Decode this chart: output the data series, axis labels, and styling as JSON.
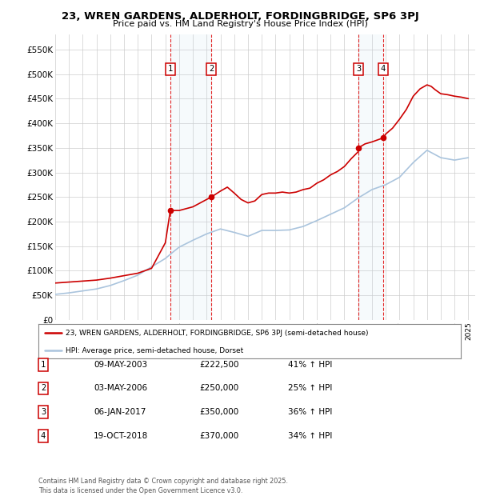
{
  "title": "23, WREN GARDENS, ALDERHOLT, FORDINGBRIDGE, SP6 3PJ",
  "subtitle": "Price paid vs. HM Land Registry's House Price Index (HPI)",
  "background_color": "#ffffff",
  "grid_color": "#cccccc",
  "hpi_line_color": "#aac4dd",
  "price_line_color": "#cc0000",
  "ylim": [
    0,
    580000
  ],
  "yticks": [
    0,
    50000,
    100000,
    150000,
    200000,
    250000,
    300000,
    350000,
    400000,
    450000,
    500000,
    550000
  ],
  "ytick_labels": [
    "£0",
    "£50K",
    "£100K",
    "£150K",
    "£200K",
    "£250K",
    "£300K",
    "£350K",
    "£400K",
    "£450K",
    "£500K",
    "£550K"
  ],
  "sale_year_vals": [
    2003.36,
    2006.34,
    2017.02,
    2018.8
  ],
  "sale_prices": [
    222500,
    250000,
    350000,
    370000
  ],
  "sale_labels": [
    "1",
    "2",
    "3",
    "4"
  ],
  "transaction_table": [
    [
      "1",
      "09-MAY-2003",
      "£222,500",
      "41% ↑ HPI"
    ],
    [
      "2",
      "03-MAY-2006",
      "£250,000",
      "25% ↑ HPI"
    ],
    [
      "3",
      "06-JAN-2017",
      "£350,000",
      "36% ↑ HPI"
    ],
    [
      "4",
      "19-OCT-2018",
      "£370,000",
      "34% ↑ HPI"
    ]
  ],
  "legend_entries": [
    "23, WREN GARDENS, ALDERHOLT, FORDINGBRIDGE, SP6 3PJ (semi-detached house)",
    "HPI: Average price, semi-detached house, Dorset"
  ],
  "footer": "Contains HM Land Registry data © Crown copyright and database right 2025.\nThis data is licensed under the Open Government Licence v3.0.",
  "hpi_data_x": [
    1995.0,
    1995.5,
    1996.0,
    1996.5,
    1997.0,
    1997.5,
    1998.0,
    1998.5,
    1999.0,
    1999.5,
    2000.0,
    2000.5,
    2001.0,
    2001.5,
    2002.0,
    2002.5,
    2003.0,
    2003.5,
    2004.0,
    2004.5,
    2005.0,
    2005.5,
    2006.0,
    2006.5,
    2007.0,
    2007.5,
    2008.0,
    2008.5,
    2009.0,
    2009.5,
    2010.0,
    2010.5,
    2011.0,
    2011.5,
    2012.0,
    2012.5,
    2013.0,
    2013.5,
    2014.0,
    2014.5,
    2015.0,
    2015.5,
    2016.0,
    2016.5,
    2017.0,
    2017.5,
    2018.0,
    2018.5,
    2019.0,
    2019.5,
    2020.0,
    2020.5,
    2021.0,
    2021.5,
    2022.0,
    2022.5,
    2023.0,
    2023.5,
    2024.0,
    2024.5,
    2025.0
  ],
  "hpi_data_y": [
    52000,
    53500,
    55000,
    57000,
    59000,
    61000,
    63000,
    66500,
    70000,
    75000,
    80000,
    85500,
    91000,
    99500,
    108000,
    116500,
    125000,
    136750,
    148000,
    155000,
    162000,
    168500,
    175000,
    180000,
    185000,
    181500,
    178000,
    174000,
    170000,
    176000,
    182000,
    182000,
    182000,
    182500,
    183000,
    186500,
    190000,
    196000,
    202000,
    208500,
    215000,
    221500,
    228000,
    238000,
    248000,
    256500,
    265000,
    270000,
    275000,
    282500,
    290000,
    305000,
    320000,
    332500,
    345000,
    337500,
    330000,
    327500,
    325000,
    327500,
    330000
  ],
  "price_data_x": [
    1995.0,
    1996.0,
    1997.0,
    1998.0,
    1999.0,
    2000.0,
    2001.0,
    2002.0,
    2003.0,
    2003.36,
    2004.0,
    2005.0,
    2006.0,
    2006.34,
    2007.0,
    2007.5,
    2008.0,
    2008.5,
    2009.0,
    2009.5,
    2010.0,
    2010.5,
    2011.0,
    2011.5,
    2012.0,
    2012.5,
    2013.0,
    2013.5,
    2014.0,
    2014.5,
    2015.0,
    2015.5,
    2016.0,
    2016.5,
    2017.0,
    2017.02,
    2017.5,
    2018.0,
    2018.5,
    2018.8,
    2019.0,
    2019.5,
    2020.0,
    2020.5,
    2021.0,
    2021.5,
    2022.0,
    2022.3,
    2022.6,
    2023.0,
    2023.5,
    2024.0,
    2024.5,
    2025.0
  ],
  "price_data_y": [
    75000,
    77000,
    79000,
    81000,
    85000,
    90000,
    95000,
    105000,
    157000,
    222500,
    222500,
    230000,
    245000,
    250000,
    262000,
    270000,
    258000,
    245000,
    238000,
    242000,
    255000,
    258000,
    258000,
    260000,
    258000,
    260000,
    265000,
    268000,
    278000,
    285000,
    295000,
    302000,
    312000,
    328000,
    342000,
    350000,
    358000,
    362000,
    367000,
    370000,
    378000,
    390000,
    408000,
    428000,
    455000,
    470000,
    478000,
    475000,
    468000,
    460000,
    458000,
    455000,
    453000,
    450000
  ]
}
